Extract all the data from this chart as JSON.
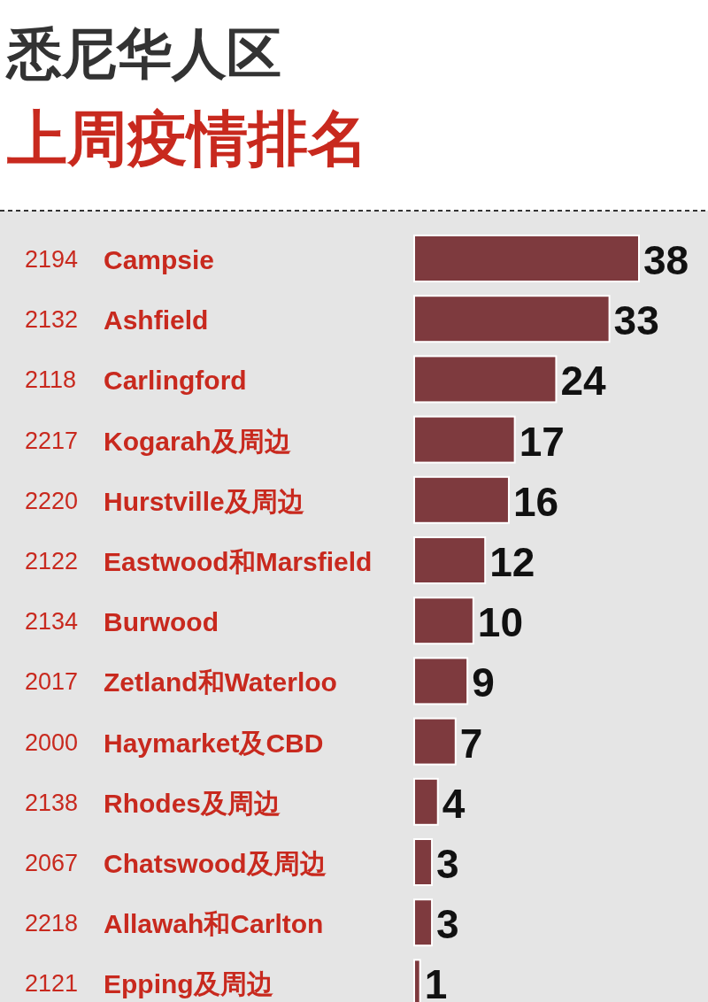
{
  "chart_data": {
    "type": "bar",
    "orientation": "horizontal",
    "title": "悉尼华人区",
    "subtitle": "上周疫情排名",
    "categories": [
      "Campsie",
      "Ashfield",
      "Carlingford",
      "Kogarah及周边",
      "Hurstville及周边",
      "Eastwood和Marsfield",
      "Burwood",
      "Zetland和Waterloo",
      "Haymarket及CBD",
      "Rhodes及周边",
      "Chatswood及周边",
      "Allawah和Carlton",
      "Epping及周边"
    ],
    "values": [
      38,
      33,
      24,
      17,
      16,
      12,
      10,
      9,
      7,
      4,
      3,
      3,
      1
    ],
    "color": "#7e3a3e",
    "data_labels": true,
    "annotations": [
      "2194",
      "2132",
      "2118",
      "2217",
      "2220",
      "2122",
      "2134",
      "2017",
      "2000",
      "2138",
      "2067",
      "2218",
      "2121"
    ]
  }
}
